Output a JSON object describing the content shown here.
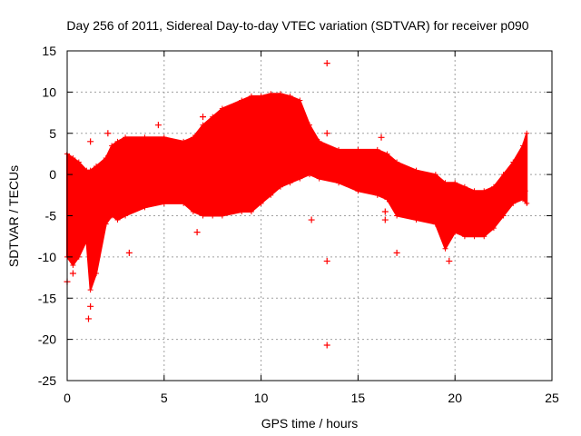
{
  "chart_data": {
    "type": "scatter",
    "title": "Day 256 of 2011, Sidereal Day-to-day VTEC variation (SDTVAR) for receiver p090",
    "xlabel": "GPS time / hours",
    "ylabel": "SDTVAR / TECUs",
    "xlim": [
      0,
      25
    ],
    "ylim": [
      -25,
      15
    ],
    "xticks": [
      0,
      5,
      10,
      15,
      20,
      25
    ],
    "yticks": [
      -25,
      -20,
      -15,
      -10,
      -5,
      0,
      5,
      10,
      15
    ],
    "grid": true,
    "marker": "+",
    "series": [
      {
        "name": "SDTVAR",
        "color": "#ff0000",
        "envelope": {
          "x": [
            0.0,
            0.3,
            0.6,
            1.0,
            1.2,
            1.5,
            2.0,
            2.3,
            2.6,
            3.0,
            4.0,
            5.0,
            6.0,
            6.5,
            7.0,
            7.5,
            8.0,
            9.0,
            9.5,
            10.0,
            10.5,
            11.0,
            11.5,
            12.0,
            12.5,
            13.0,
            14.0,
            15.0,
            16.0,
            16.5,
            17.0,
            18.0,
            19.0,
            19.5,
            20.0,
            20.5,
            21.0,
            21.5,
            22.0,
            22.5,
            23.0,
            23.5,
            23.7
          ],
          "upper": [
            2.5,
            2.0,
            1.5,
            0.5,
            0.5,
            1.0,
            2.0,
            3.5,
            4.0,
            4.5,
            4.5,
            4.5,
            4.0,
            4.5,
            6.0,
            7.0,
            8.0,
            9.0,
            9.5,
            9.5,
            9.8,
            9.8,
            9.5,
            9.0,
            6.0,
            4.0,
            3.0,
            3.0,
            3.0,
            2.5,
            1.5,
            0.5,
            0.0,
            -1.0,
            -1.0,
            -1.5,
            -2.0,
            -2.0,
            -1.5,
            0.0,
            1.5,
            3.5,
            5.0
          ],
          "lower": [
            -10.0,
            -11.0,
            -10.0,
            -8.0,
            -14.0,
            -12.0,
            -6.0,
            -5.0,
            -5.5,
            -5.0,
            -4.0,
            -3.5,
            -3.5,
            -4.5,
            -5.0,
            -5.0,
            -5.0,
            -4.5,
            -4.5,
            -3.5,
            -2.5,
            -1.5,
            -1.0,
            -0.5,
            0.0,
            -0.5,
            -1.0,
            -2.0,
            -2.5,
            -3.0,
            -5.0,
            -5.5,
            -6.0,
            -9.0,
            -7.0,
            -7.5,
            -7.5,
            -7.5,
            -6.5,
            -5.0,
            -3.5,
            -3.0,
            -3.5
          ]
        },
        "points": [
          [
            13.4,
            13.5
          ],
          [
            13.4,
            -10.5
          ],
          [
            13.4,
            -20.7
          ],
          [
            12.6,
            -5.5
          ],
          [
            3.2,
            -9.5
          ],
          [
            1.1,
            -17.5
          ],
          [
            1.2,
            -16.0
          ],
          [
            0.0,
            -13.0
          ],
          [
            1.2,
            4.0
          ],
          [
            4.7,
            6.0
          ],
          [
            16.4,
            -4.5
          ],
          [
            16.4,
            -5.5
          ],
          [
            17.0,
            -9.5
          ],
          [
            19.7,
            -10.5
          ],
          [
            6.7,
            -7.0
          ],
          [
            7.0,
            7.0
          ],
          [
            13.4,
            5.0
          ],
          [
            16.2,
            4.5
          ],
          [
            20.3,
            -2.0
          ],
          [
            22.6,
            -3.5
          ],
          [
            2.1,
            5.0
          ],
          [
            0.3,
            -12.0
          ],
          [
            0.2,
            -9.0
          ],
          [
            23.6,
            -2.0
          ]
        ]
      }
    ]
  }
}
